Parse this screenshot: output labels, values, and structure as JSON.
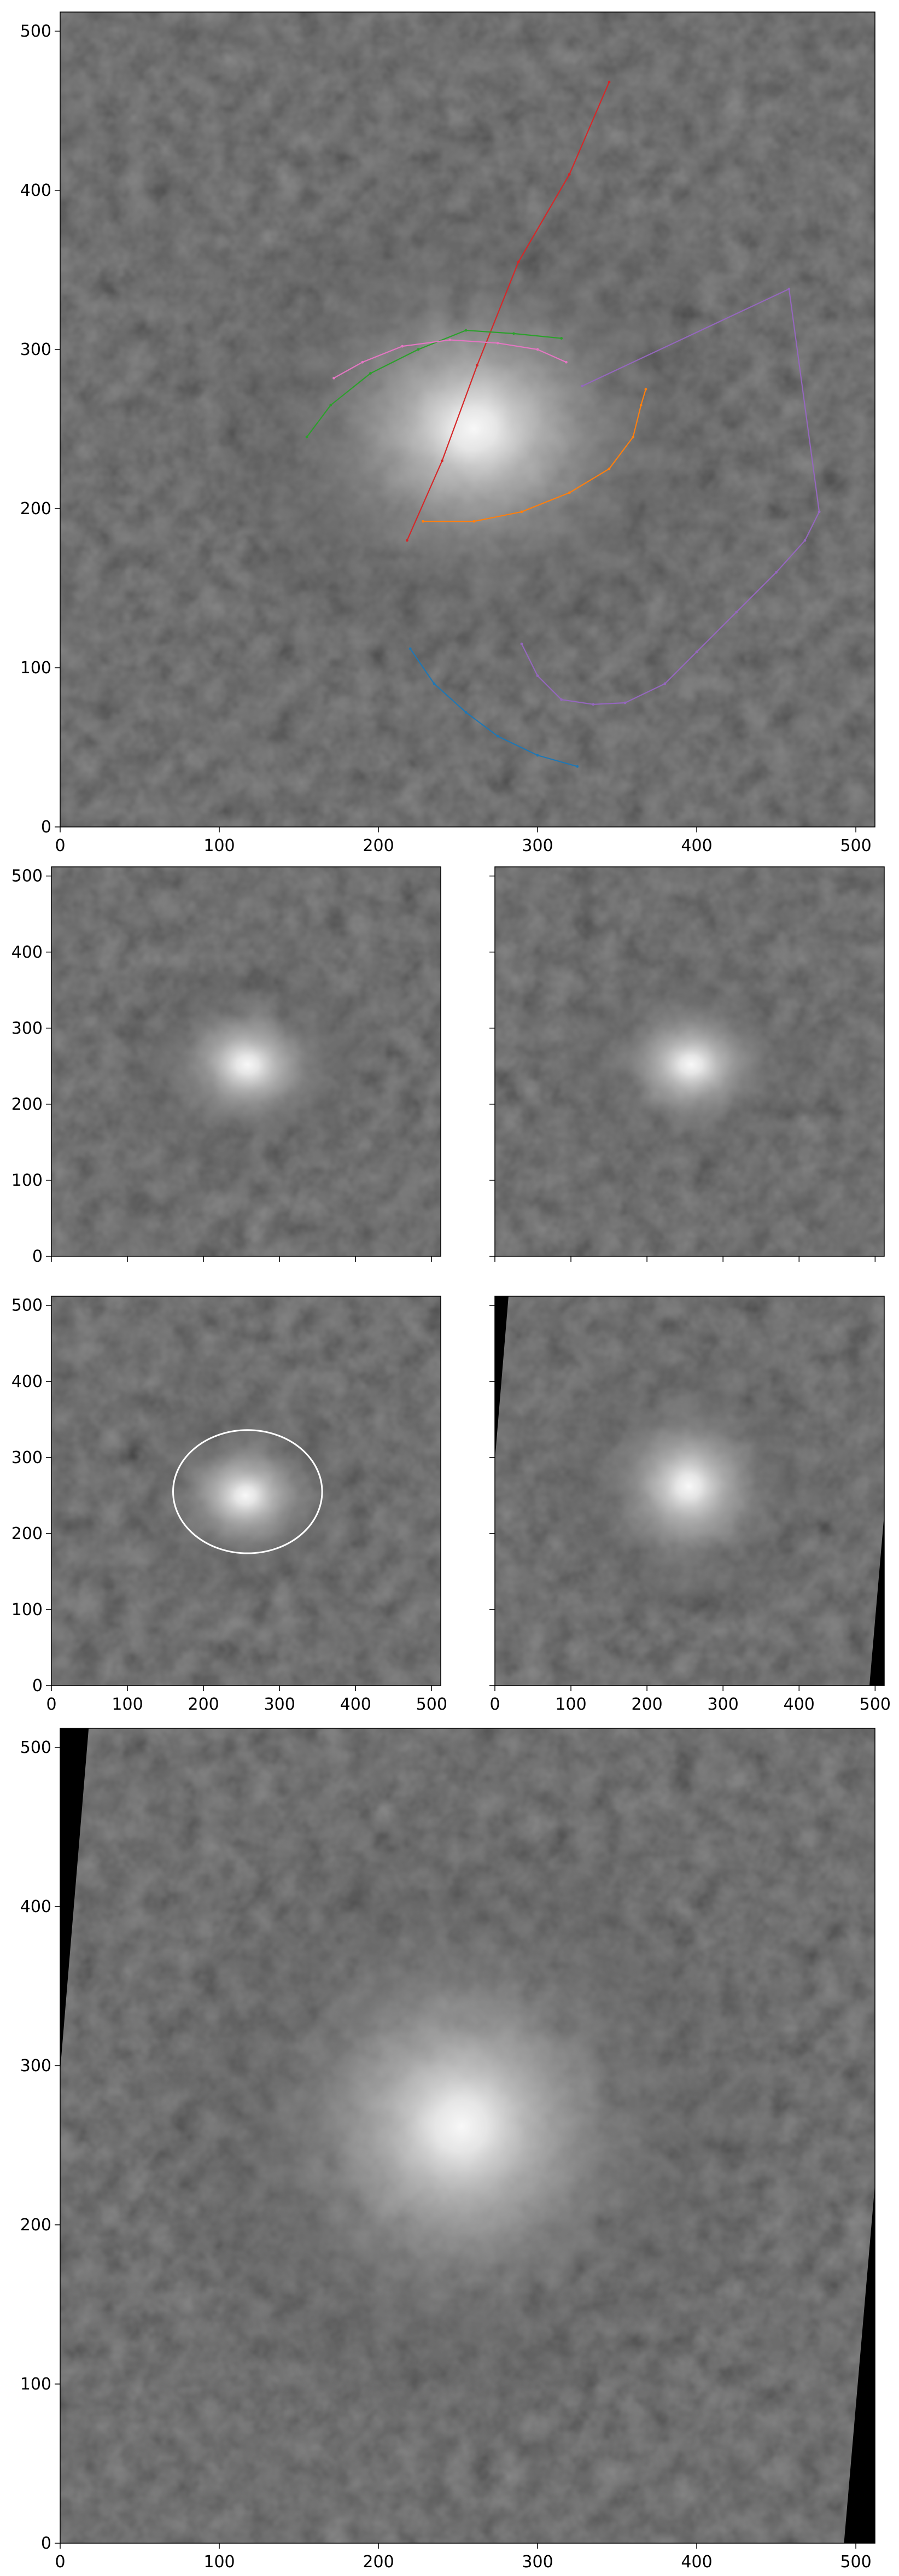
{
  "chart_data": [
    {
      "id": "top-panel",
      "type": "image-with-tracks",
      "title": "",
      "xlabel": "",
      "ylabel": "",
      "xlim": [
        0,
        512
      ],
      "ylim": [
        0,
        512
      ],
      "xticks": [
        0,
        100,
        200,
        300,
        400,
        500
      ],
      "yticks": [
        0,
        100,
        200,
        300,
        400,
        500
      ],
      "image": {
        "center": [
          260,
          250
        ],
        "sigma": [
          70,
          62
        ],
        "peak": 0.95,
        "frame": "none"
      },
      "series": [
        {
          "name": "track-red",
          "color": "#d62728",
          "points": [
            [
              218,
              180
            ],
            [
              240,
              230
            ],
            [
              262,
              290
            ],
            [
              288,
              355
            ],
            [
              320,
              410
            ],
            [
              345,
              468
            ]
          ]
        },
        {
          "name": "track-green",
          "color": "#2ca02c",
          "points": [
            [
              155,
              245
            ],
            [
              170,
              265
            ],
            [
              195,
              285
            ],
            [
              225,
              300
            ],
            [
              255,
              312
            ],
            [
              285,
              310
            ],
            [
              315,
              307
            ]
          ]
        },
        {
          "name": "track-pink",
          "color": "#e377c2",
          "points": [
            [
              172,
              282
            ],
            [
              190,
              292
            ],
            [
              215,
              302
            ],
            [
              245,
              306
            ],
            [
              275,
              304
            ],
            [
              300,
              300
            ],
            [
              318,
              292
            ]
          ]
        },
        {
          "name": "track-orange",
          "color": "#ff7f0e",
          "points": [
            [
              228,
              192
            ],
            [
              260,
              192
            ],
            [
              290,
              198
            ],
            [
              320,
              210
            ],
            [
              345,
              225
            ],
            [
              360,
              245
            ],
            [
              365,
              265
            ],
            [
              368,
              275
            ]
          ]
        },
        {
          "name": "track-purple",
          "color": "#9467bd",
          "points": [
            [
              290,
              115
            ],
            [
              300,
              95
            ],
            [
              315,
              80
            ],
            [
              335,
              77
            ],
            [
              355,
              78
            ],
            [
              380,
              90
            ],
            [
              400,
              110
            ],
            [
              425,
              135
            ],
            [
              450,
              160
            ],
            [
              468,
              180
            ],
            [
              477,
              198
            ],
            [
              458,
              338
            ],
            [
              328,
              277
            ]
          ]
        },
        {
          "name": "track-blue",
          "color": "#1f77b4",
          "points": [
            [
              220,
              112
            ],
            [
              235,
              90
            ],
            [
              255,
              72
            ],
            [
              275,
              57
            ],
            [
              300,
              45
            ],
            [
              325,
              38
            ]
          ]
        }
      ]
    },
    {
      "id": "mid-left",
      "type": "image",
      "xlim": [
        0,
        512
      ],
      "ylim": [
        0,
        512
      ],
      "xticks": [
        0,
        100,
        200,
        300,
        400,
        500
      ],
      "yticks": [
        0,
        100,
        200,
        300,
        400,
        500
      ],
      "show_xtick_labels": false,
      "show_ytick_labels": true,
      "image": {
        "center": [
          258,
          252
        ],
        "sigma": [
          70,
          58
        ],
        "peak": 0.95,
        "frame": "none"
      }
    },
    {
      "id": "mid-right",
      "type": "image",
      "xlim": [
        0,
        512
      ],
      "ylim": [
        0,
        512
      ],
      "xticks": [
        0,
        100,
        200,
        300,
        400,
        500
      ],
      "yticks": [
        0,
        100,
        200,
        300,
        400,
        500
      ],
      "show_xtick_labels": false,
      "show_ytick_labels": false,
      "image": {
        "center": [
          258,
          252
        ],
        "sigma": [
          70,
          58
        ],
        "peak": 0.95,
        "frame": "none"
      }
    },
    {
      "id": "lower-left",
      "type": "image-with-ellipse",
      "xlim": [
        0,
        512
      ],
      "ylim": [
        0,
        512
      ],
      "xticks": [
        0,
        100,
        200,
        300,
        400,
        500
      ],
      "yticks": [
        0,
        100,
        200,
        300,
        400,
        500
      ],
      "show_xtick_labels": true,
      "show_ytick_labels": true,
      "image": {
        "center": [
          255,
          250
        ],
        "sigma": [
          65,
          55
        ],
        "peak": 0.95,
        "frame": "none"
      },
      "ellipse": {
        "cx": 258,
        "cy": 255,
        "rx": 98,
        "ry": 81,
        "color": "#ffffff"
      }
    },
    {
      "id": "lower-right",
      "type": "image",
      "xlim": [
        0,
        512
      ],
      "ylim": [
        0,
        512
      ],
      "xticks": [
        0,
        100,
        200,
        300,
        400,
        500
      ],
      "yticks": [
        0,
        100,
        200,
        300,
        400,
        500
      ],
      "show_xtick_labels": true,
      "show_ytick_labels": false,
      "image": {
        "center": [
          255,
          262
        ],
        "sigma": [
          75,
          75
        ],
        "peak": 0.95,
        "frame": "skew"
      }
    },
    {
      "id": "bottom-panel",
      "type": "image",
      "xlim": [
        0,
        512
      ],
      "ylim": [
        0,
        512
      ],
      "xticks": [
        0,
        100,
        200,
        300,
        400,
        500
      ],
      "yticks": [
        0,
        100,
        200,
        300,
        400,
        500
      ],
      "show_xtick_labels": true,
      "show_ytick_labels": true,
      "image": {
        "center": [
          252,
          262
        ],
        "sigma": [
          78,
          78
        ],
        "peak": 0.95,
        "frame": "skew"
      }
    }
  ]
}
